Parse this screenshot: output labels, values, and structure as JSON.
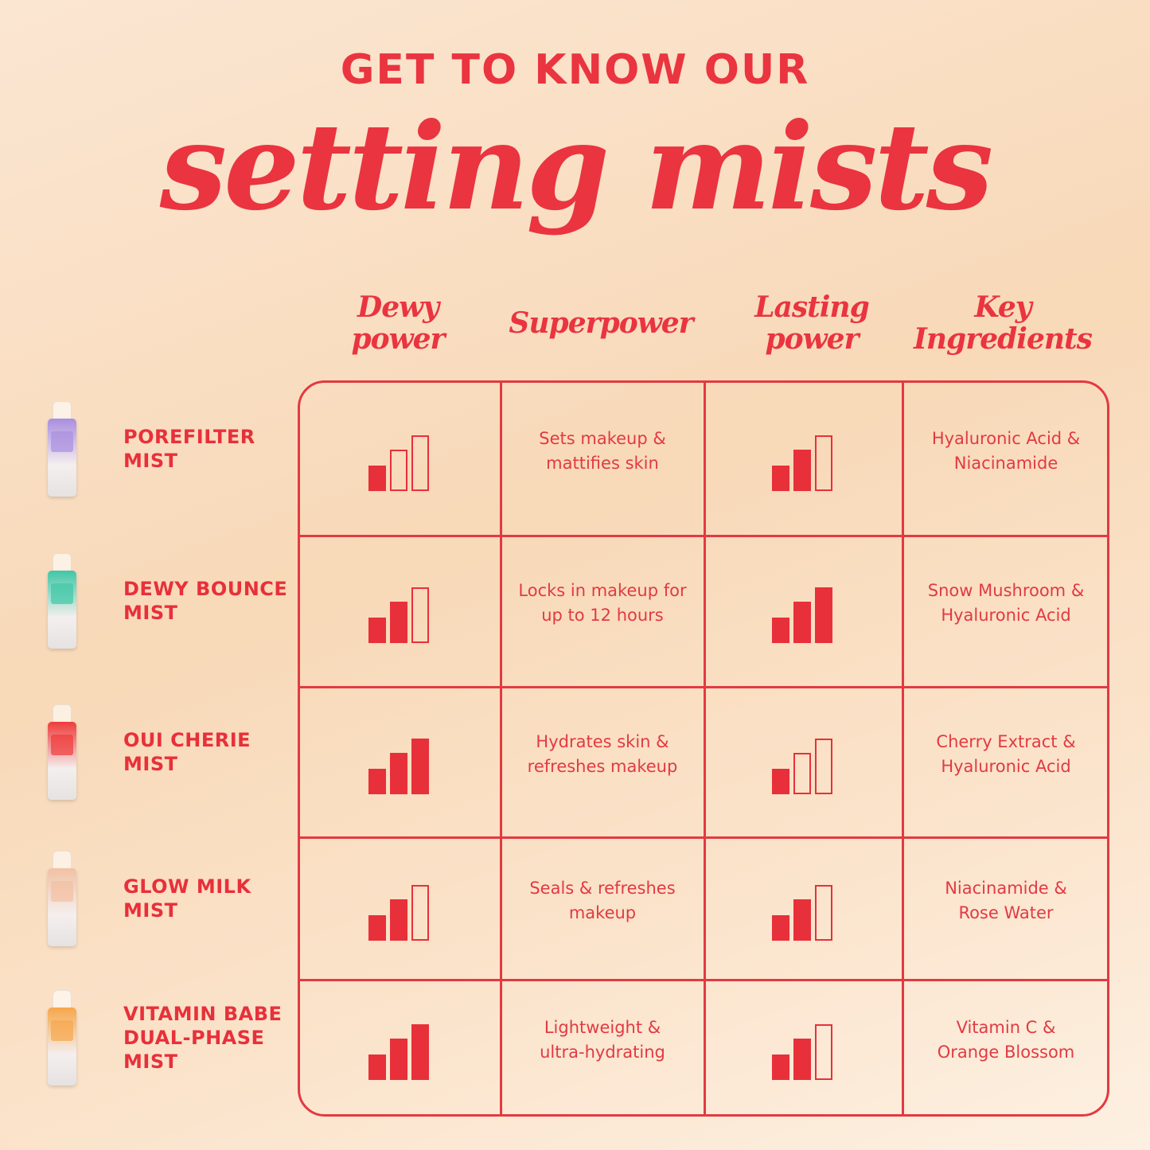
{
  "header": {
    "kicker": "GET TO KNOW OUR",
    "script_title": "setting mists"
  },
  "columns": [
    {
      "line1": "Dewy",
      "line2": "power"
    },
    {
      "line1": "Superpower",
      "line2": ""
    },
    {
      "line1": "Lasting",
      "line2": "power"
    },
    {
      "line1": "Key",
      "line2": "Ingredients"
    }
  ],
  "colors": {
    "accent": "#e8303a",
    "background": "#f8d9b8"
  },
  "chart_data": {
    "type": "table",
    "rating_max": 3,
    "rows": [
      {
        "name_line1": "POREFILTER",
        "name_line2": "MIST",
        "name_line3": "",
        "bottle_color": "#a98ee0",
        "dewy_power": 1,
        "superpower_line1": "Sets makeup &",
        "superpower_line2": "mattifies skin",
        "lasting_power": 2,
        "ingredients_line1": "Hyaluronic Acid &",
        "ingredients_line2": "Niacinamide"
      },
      {
        "name_line1": "DEWY BOUNCE",
        "name_line2": "MIST",
        "name_line3": "",
        "bottle_color": "#3fc7a6",
        "dewy_power": 2,
        "superpower_line1": "Locks in makeup for",
        "superpower_line2": "up to 12 hours",
        "lasting_power": 3,
        "ingredients_line1": "Snow Mushroom &",
        "ingredients_line2": "Hyaluronic Acid"
      },
      {
        "name_line1": "OUI CHERIE",
        "name_line2": "MIST",
        "name_line3": "",
        "bottle_color": "#ef3b3b",
        "dewy_power": 3,
        "superpower_line1": "Hydrates skin &",
        "superpower_line2": "refreshes makeup",
        "lasting_power": 1,
        "ingredients_line1": "Cherry Extract &",
        "ingredients_line2": "Hyaluronic Acid"
      },
      {
        "name_line1": "GLOW MILK",
        "name_line2": "MIST",
        "name_line3": "",
        "bottle_color": "#f2c1a3",
        "dewy_power": 2,
        "superpower_line1": "Seals & refreshes",
        "superpower_line2": "makeup",
        "lasting_power": 2,
        "ingredients_line1": "Niacinamide &",
        "ingredients_line2": "Rose Water"
      },
      {
        "name_line1": "VITAMIN BABE",
        "name_line2": "DUAL-PHASE",
        "name_line3": "MIST",
        "bottle_color": "#f7a64a",
        "dewy_power": 3,
        "superpower_line1": "Lightweight &",
        "superpower_line2": "ultra-hydrating",
        "lasting_power": 2,
        "ingredients_line1": "Vitamin C &",
        "ingredients_line2": "Orange Blossom"
      }
    ]
  }
}
